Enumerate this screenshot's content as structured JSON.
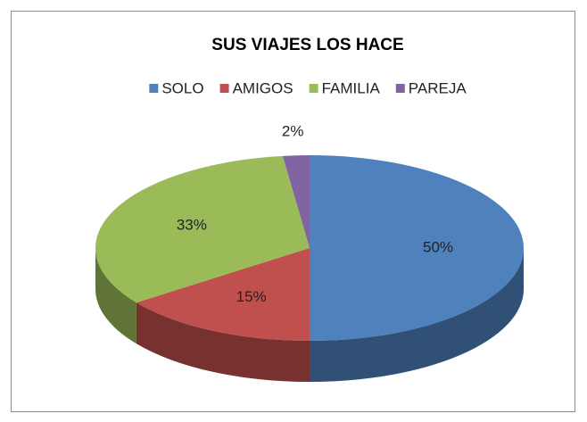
{
  "chart_data": {
    "type": "pie3d",
    "title": "SUS VIAJES LOS HACE",
    "categories": [
      "SOLO",
      "AMIGOS",
      "FAMILIA",
      "PAREJA"
    ],
    "values": [
      50,
      15,
      33,
      2
    ],
    "value_labels": [
      "50%",
      "15%",
      "33%",
      "2%"
    ],
    "colors": [
      "#4f81bd",
      "#c0504d",
      "#9bbb59",
      "#8064a2"
    ],
    "legend": "top"
  }
}
